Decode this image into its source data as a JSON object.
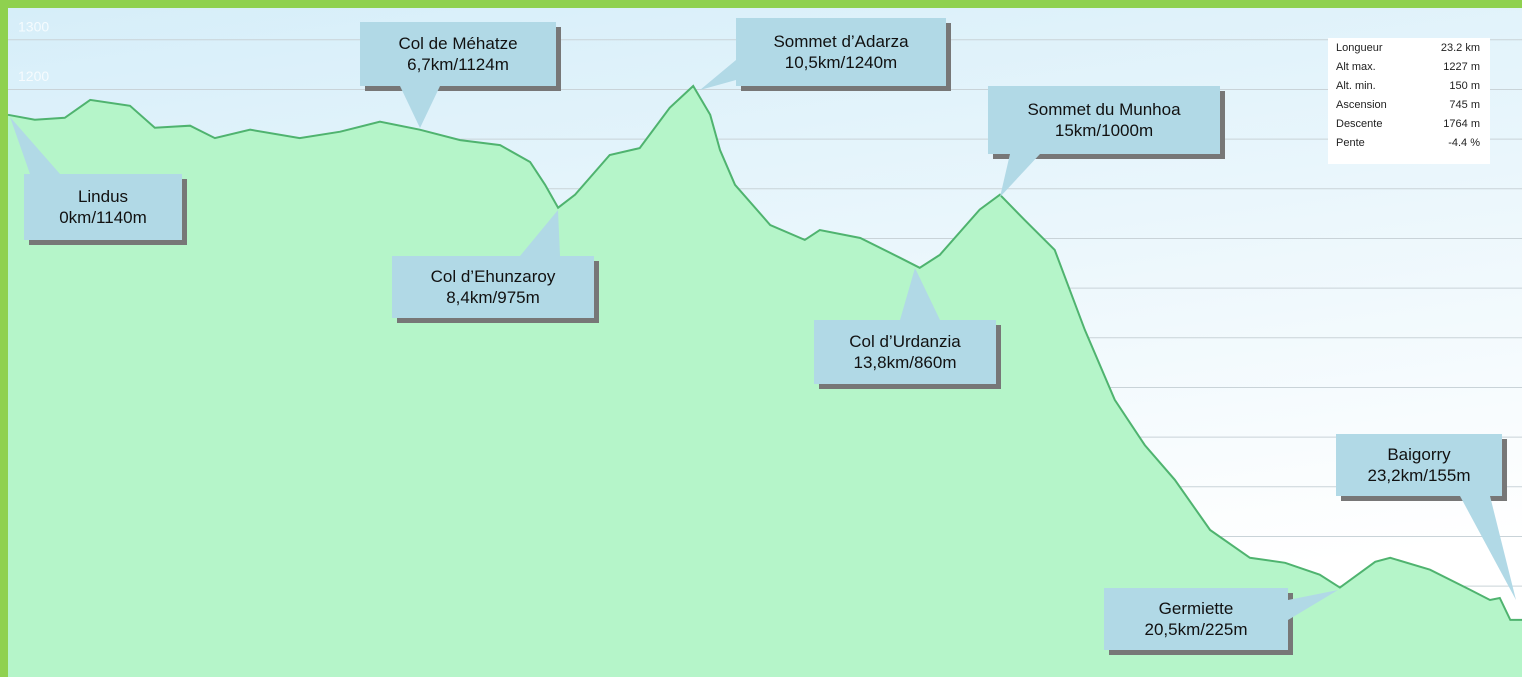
{
  "chart_data": {
    "type": "area",
    "x": [
      0,
      0.41,
      0.87,
      1.26,
      1.87,
      2.25,
      2.79,
      3.17,
      3.71,
      4.47,
      5.09,
      5.7,
      6.31,
      6.93,
      7.54,
      8.0,
      8.23,
      8.43,
      8.69,
      9.22,
      9.68,
      10.14,
      10.5,
      10.76,
      10.91,
      11.14,
      11.68,
      12.21,
      12.44,
      13.06,
      13.67,
      13.97,
      14.28,
      14.89,
      15.2,
      15.58,
      16.04,
      16.5,
      16.96,
      17.42,
      17.88,
      18.42,
      19.03,
      19.57,
      20.1,
      20.41,
      20.95,
      21.18,
      21.79,
      22.4,
      22.71,
      22.86,
      23.02,
      23.2
    ],
    "values": [
      1149,
      1139,
      1143,
      1179,
      1167,
      1123,
      1127,
      1102,
      1119,
      1102,
      1115,
      1135,
      1119,
      1098,
      1088,
      1054,
      1008,
      962,
      988,
      1068,
      1082,
      1163,
      1207,
      1149,
      1078,
      1008,
      927,
      897,
      917,
      901,
      861,
      841,
      867,
      958,
      988,
      937,
      877,
      716,
      575,
      484,
      414,
      313,
      257,
      247,
      223,
      197,
      249,
      257,
      233,
      193,
      172,
      176,
      132,
      132
    ],
    "color": "#4fb36f",
    "fill": "#b5f5c9",
    "xlim": [
      0,
      23.2
    ],
    "ylim": [
      17,
      1364
    ],
    "yticks": [
      100,
      200,
      300,
      400,
      500,
      600,
      700,
      800,
      900,
      1000,
      1100,
      1200,
      1300
    ],
    "grid": true,
    "annotations": [
      {
        "name": "Lindus",
        "label": "0km/1140m"
      },
      {
        "name": "Col de Méhatze",
        "label": "6,7km/1124m"
      },
      {
        "name": "Sommet d’Adarza",
        "label": "10,5km/1240m"
      },
      {
        "name": "Col d’Ehunzaroy",
        "label": "8,4km/975m"
      },
      {
        "name": "Col d’Urdanzia",
        "label": "13,8km/860m"
      },
      {
        "name": "Sommet du Munhoa",
        "label": "15km/1000m"
      },
      {
        "name": "Germiette",
        "label": "20,5km/225m"
      },
      {
        "name": "Baigorry",
        "label": "23,2km/155m"
      }
    ],
    "stats": [
      [
        "Longueur",
        "23.2 km"
      ],
      [
        "Alt max.",
        "1227 m"
      ],
      [
        "Alt. min.",
        "150 m"
      ],
      [
        "Ascension",
        "745 m"
      ],
      [
        "Descente",
        "1764 m"
      ],
      [
        "Pente",
        "-4.4 %"
      ]
    ]
  }
}
